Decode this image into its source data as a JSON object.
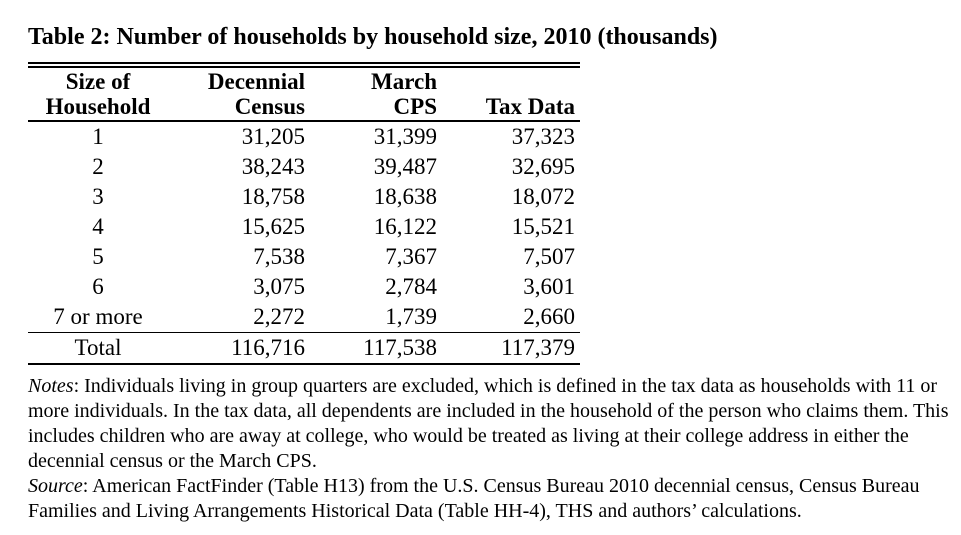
{
  "title": "Table 2: Number of households by household size, 2010 (thousands)",
  "table": {
    "col_headers": [
      {
        "line1": "Size of",
        "line2": "Household"
      },
      {
        "line1": "Decennial",
        "line2": "Census"
      },
      {
        "line1": "March",
        "line2": "CPS"
      },
      {
        "line1": "",
        "line2": "Tax Data"
      }
    ],
    "rows": [
      [
        "1",
        "31,205",
        "31,399",
        "37,323"
      ],
      [
        "2",
        "38,243",
        "39,487",
        "32,695"
      ],
      [
        "3",
        "18,758",
        "18,638",
        "18,072"
      ],
      [
        "4",
        "15,625",
        "16,122",
        "15,521"
      ],
      [
        "5",
        "7,538",
        "7,367",
        "7,507"
      ],
      [
        "6",
        "3,075",
        "2,784",
        "3,601"
      ],
      [
        "7 or more",
        "2,272",
        "1,739",
        "2,660"
      ]
    ],
    "total_row": [
      "Total",
      "116,716",
      "117,538",
      "117,379"
    ]
  },
  "notes": {
    "label": "Notes",
    "text": ": Individuals living in group quarters are excluded, which is defined in the tax data as households with 11 or more individuals. In the tax data, all dependents are included in the household of the person who claims them. This includes children who are away at college, who would be treated as living at their college address in either the decennial census or the March CPS."
  },
  "source": {
    "label": "Source",
    "text": ": American FactFinder (Table H13) from the U.S. Census Bureau 2010 decennial census, Census Bureau Families and Living Arrangements Historical Data (Table HH-4), THS and authors’ calculations."
  },
  "colors": {
    "text": "#000000",
    "background": "#ffffff",
    "rule": "#000000"
  }
}
